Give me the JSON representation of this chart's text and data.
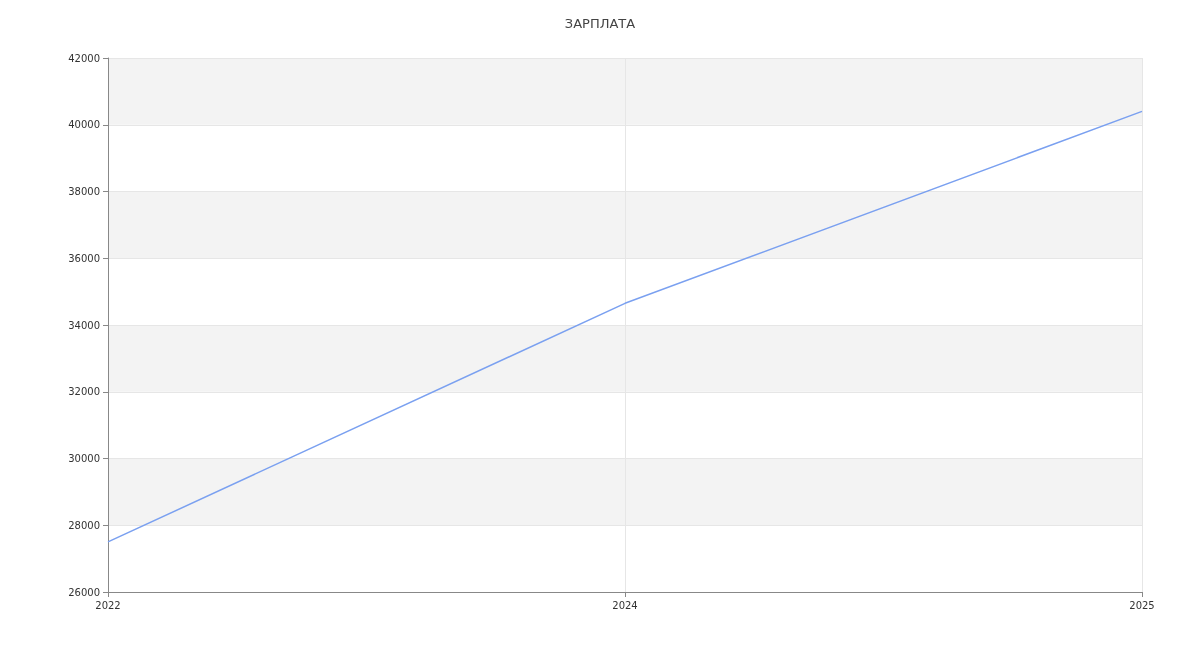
{
  "chart_data": {
    "type": "line",
    "title": "ЗАРПЛАТА",
    "categories": [
      "2022",
      "2024",
      "2025"
    ],
    "series": [
      {
        "color": "#7aa0f0",
        "values": [
          27500,
          34650,
          40400
        ]
      }
    ],
    "ylim": [
      26000,
      42000
    ],
    "yticks": [
      26000,
      28000,
      30000,
      32000,
      34000,
      36000,
      38000,
      40000,
      42000
    ],
    "grid": true,
    "marker": "none",
    "line_style": "solid"
  }
}
